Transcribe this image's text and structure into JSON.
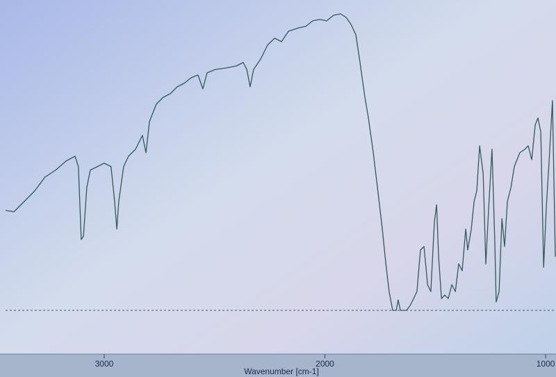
{
  "chart_data": {
    "type": "line",
    "x_label": "Wavenumber [cm-1]",
    "x": [
      3447,
      3409,
      3362,
      3315,
      3268,
      3220,
      3173,
      3132,
      3117,
      3104,
      3094,
      3079,
      3063,
      3031,
      3000,
      2969,
      2953,
      2943,
      2934,
      2912,
      2890,
      2858,
      2827,
      2811,
      2795,
      2764,
      2732,
      2701,
      2669,
      2638,
      2606,
      2575,
      2553,
      2534,
      2496,
      2449,
      2402,
      2370,
      2354,
      2339,
      2323,
      2291,
      2260,
      2228,
      2197,
      2165,
      2118,
      2087,
      2055,
      2024,
      1992,
      1961,
      1929,
      1904,
      1882,
      1860,
      1841,
      1819,
      1803,
      1781,
      1762,
      1740,
      1724,
      1709,
      1693,
      1677,
      1668,
      1658,
      1630,
      1614,
      1598,
      1583,
      1567,
      1551,
      1535,
      1520,
      1504,
      1494,
      1485,
      1472,
      1457,
      1441,
      1425,
      1409,
      1394,
      1378,
      1362,
      1353,
      1337,
      1324,
      1312,
      1299,
      1283,
      1271,
      1258,
      1243,
      1230,
      1224,
      1211,
      1198,
      1186,
      1173,
      1157,
      1142,
      1117,
      1094,
      1079,
      1063,
      1047,
      1035,
      1022,
      1009,
      997,
      984,
      969,
      956
    ],
    "series": [
      {
        "color": "#2e5a58",
        "values": [
          41.4,
          41,
          44,
          47,
          51,
          53,
          55.6,
          57,
          54,
          33,
          34,
          48,
          53,
          54,
          55,
          54,
          44,
          36,
          44,
          54,
          57,
          59,
          63,
          58,
          67,
          72,
          74,
          75,
          77,
          78,
          79.6,
          80.4,
          76.4,
          81,
          82,
          82.4,
          83,
          84,
          82,
          77,
          82,
          85,
          89,
          91,
          90,
          93,
          94,
          94.4,
          96,
          96.4,
          96,
          97.6,
          98,
          97,
          95,
          92,
          84,
          74,
          68,
          58,
          48,
          36,
          26,
          18,
          12.6,
          12.6,
          15.6,
          12.6,
          12.6,
          14,
          16,
          18,
          30,
          31,
          20,
          18,
          38,
          43,
          28,
          16,
          17,
          16,
          20,
          18,
          26,
          24,
          36,
          30,
          36,
          44,
          47,
          60,
          52,
          26,
          42,
          59,
          32,
          15,
          18,
          39,
          31,
          44,
          48,
          54,
          58,
          59,
          60,
          56,
          66,
          68,
          64,
          25,
          42,
          56,
          73,
          28
        ]
      }
    ],
    "xlim": [
      3447,
      953
    ],
    "xticks": [
      3000,
      2000,
      1000
    ],
    "ylim": [
      0,
      100
    ],
    "baseline": 12.6
  }
}
